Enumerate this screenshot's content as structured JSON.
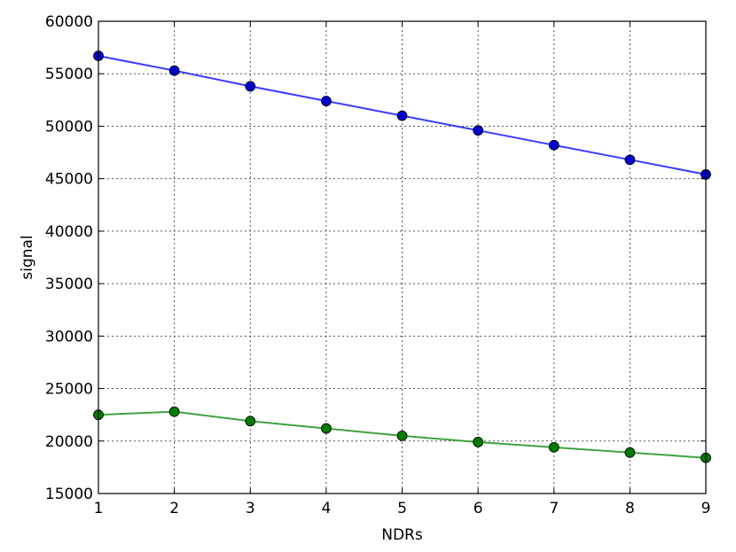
{
  "chart_data": {
    "type": "line",
    "xlabel": "NDRs",
    "ylabel": "signal",
    "xlim": [
      1,
      9
    ],
    "ylim": [
      15000,
      60000
    ],
    "x_ticks": [
      1,
      2,
      3,
      4,
      5,
      6,
      7,
      8,
      9
    ],
    "x_tick_labels": [
      "1",
      "2",
      "3",
      "4",
      "5",
      "6",
      "7",
      "8",
      "9"
    ],
    "y_ticks": [
      15000,
      20000,
      25000,
      30000,
      35000,
      40000,
      45000,
      50000,
      55000,
      60000
    ],
    "y_tick_labels": [
      "15000",
      "20000",
      "25000",
      "30000",
      "35000",
      "40000",
      "45000",
      "50000",
      "55000",
      "60000"
    ],
    "grid": true,
    "x": [
      1,
      2,
      3,
      4,
      5,
      6,
      7,
      8,
      9
    ],
    "series": [
      {
        "values": [
          56700,
          55300,
          53800,
          52400,
          51000,
          49600,
          48200,
          46800,
          45400
        ],
        "color": "#3a3aff",
        "marker_color": "#0000cc"
      },
      {
        "values": [
          22500,
          22800,
          21900,
          21200,
          20500,
          19900,
          19400,
          18900,
          18400
        ],
        "color": "#3fa33f",
        "marker_color": "#007a00"
      }
    ]
  }
}
